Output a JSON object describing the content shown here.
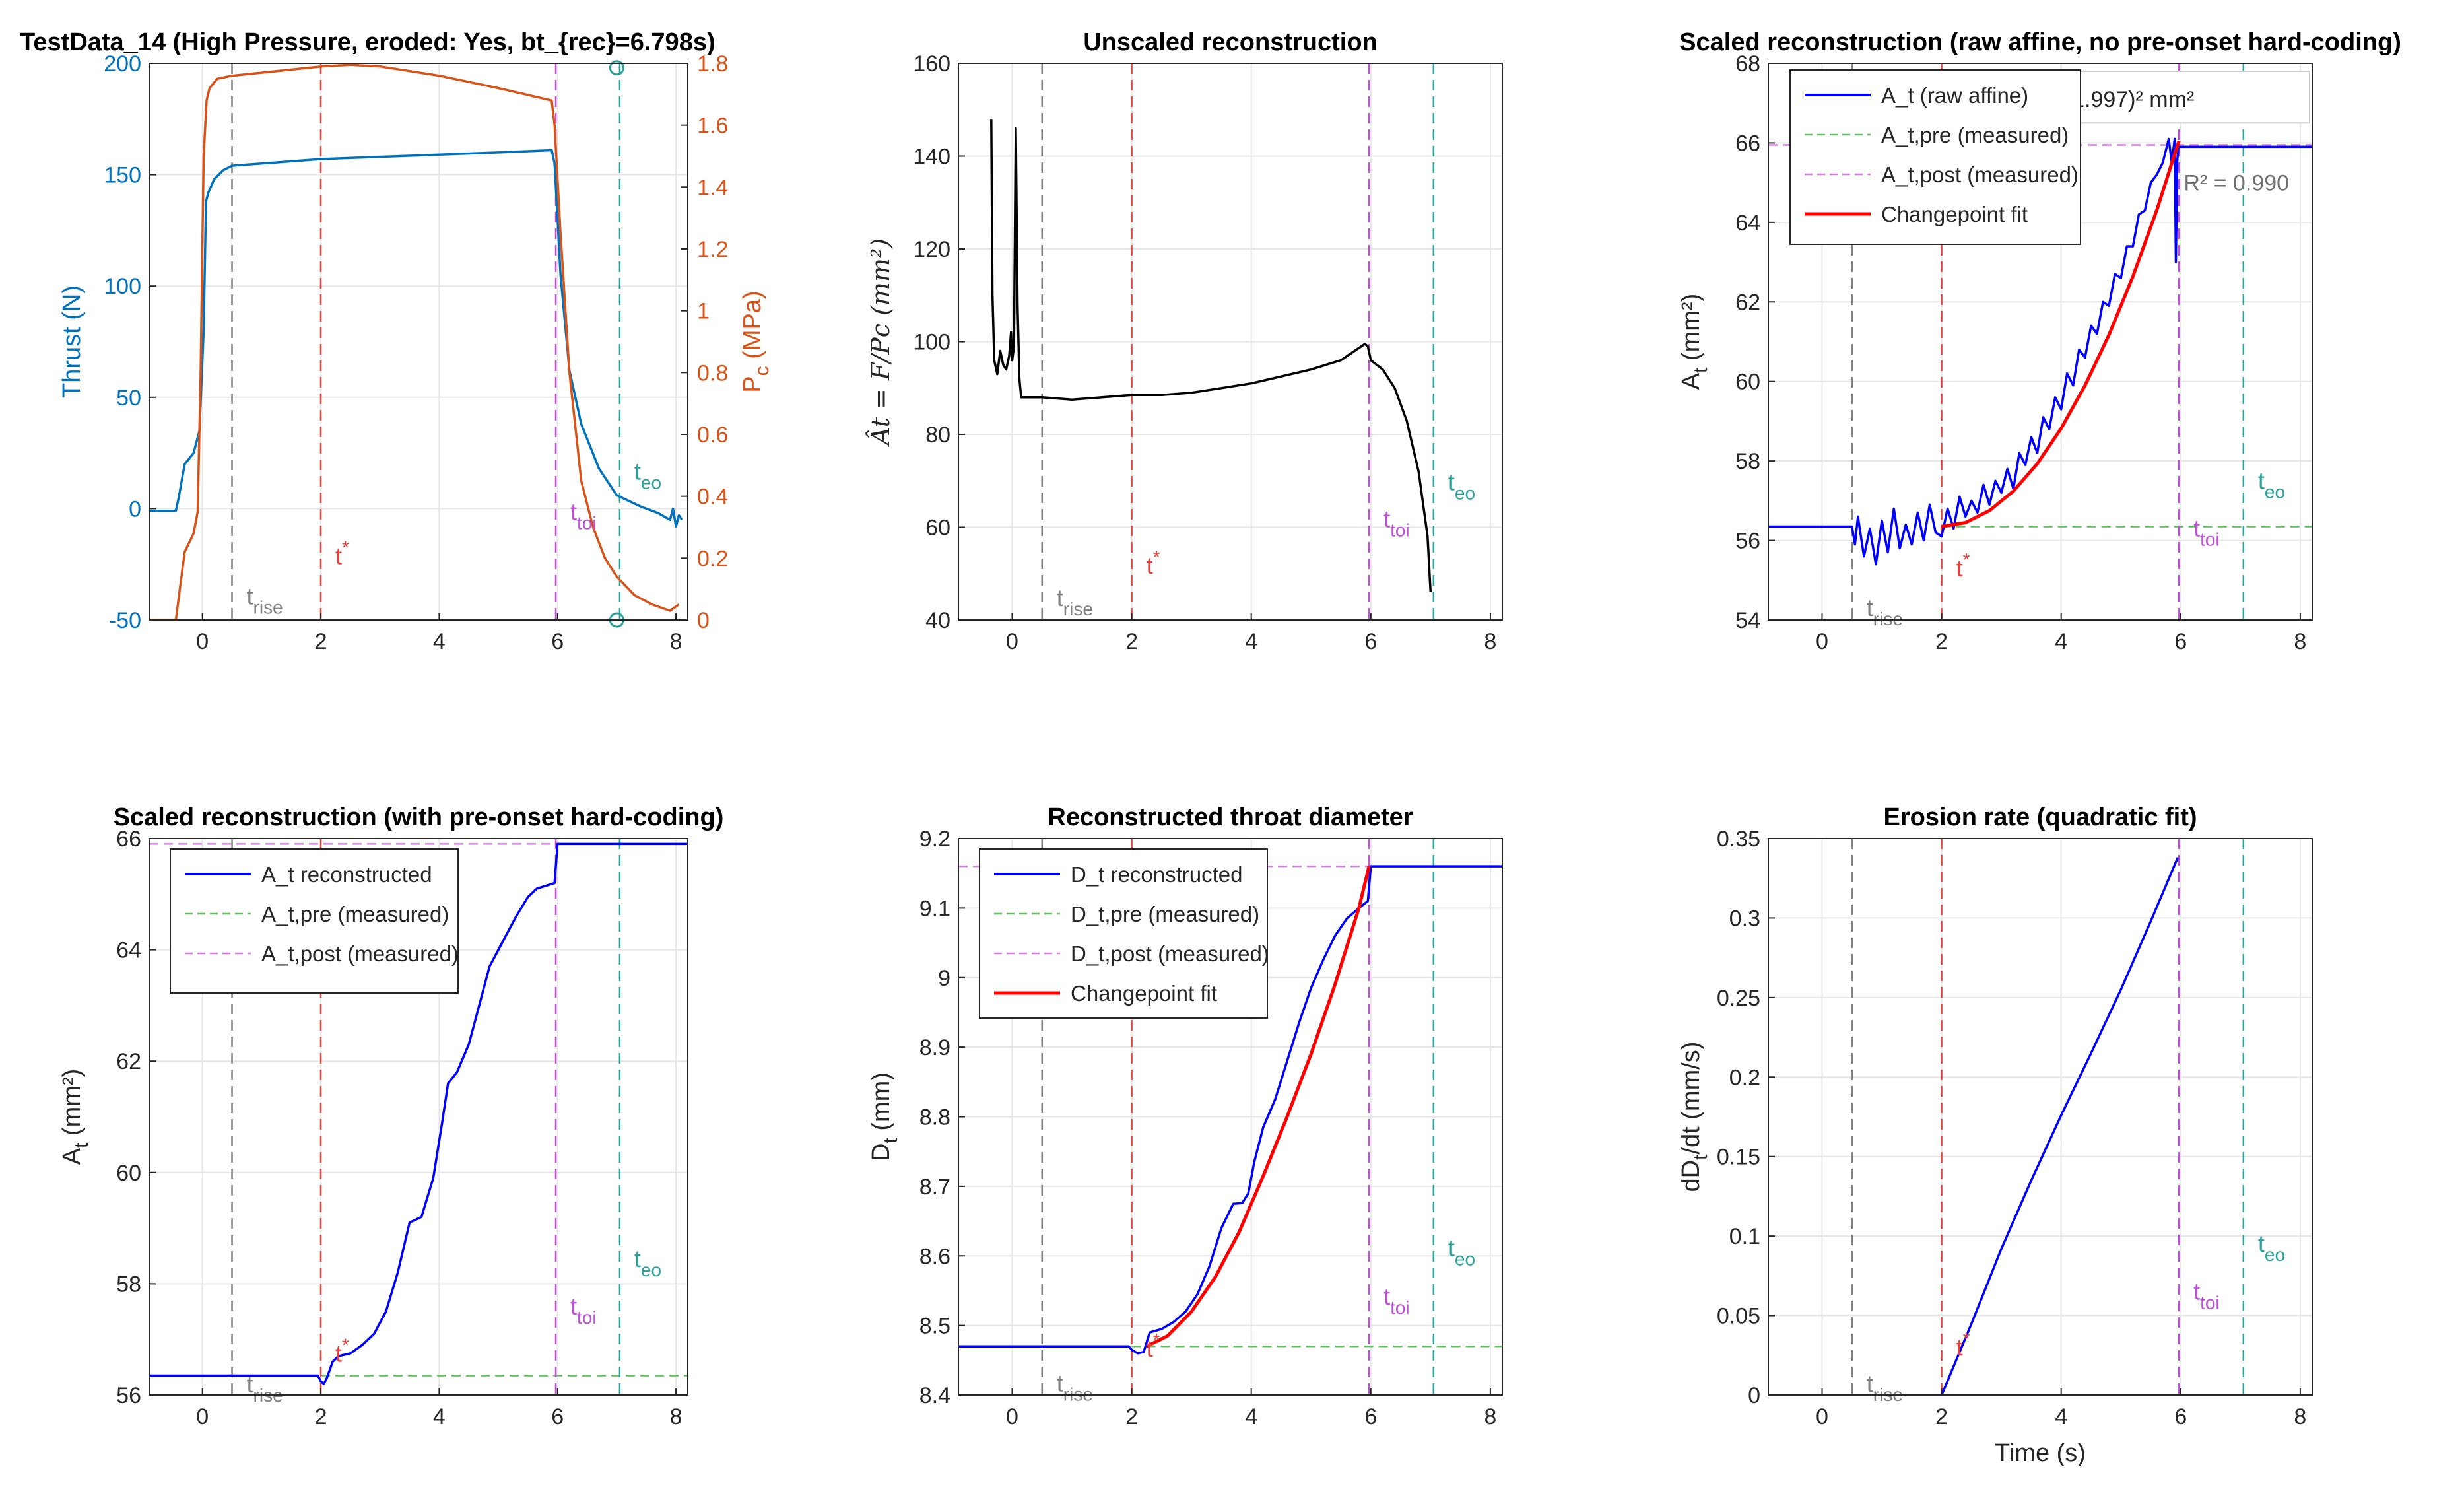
{
  "chart_data": [
    {
      "type": "line",
      "title": "TestData_14   (High Pressure, eroded: Yes, bt_{rec}=6.798s)",
      "xlabel": "",
      "ylabel": "Thrust (N)",
      "ylabel_right": "P",
      "ylabel_right_sub": "c",
      "ylabel_right_unit": " (MPa)",
      "xlim": [
        -0.9,
        8.2
      ],
      "ylim": [
        -50,
        200
      ],
      "ylim_right": [
        0,
        1.8
      ],
      "xticks": [
        0,
        2,
        4,
        6,
        8
      ],
      "yticks": [
        -50,
        0,
        50,
        100,
        150,
        200
      ],
      "yticks_right": [
        0,
        0.2,
        0.4,
        0.6,
        0.8,
        1,
        1.2,
        1.4,
        1.6,
        1.8
      ],
      "grid": true,
      "series": [
        {
          "name": "",
          "axis": "left",
          "color": "#0072BD",
          "x": [
            -0.9,
            -0.45,
            -0.4,
            -0.3,
            -0.15,
            -0.05,
            0.02,
            0.06,
            0.1,
            0.2,
            0.35,
            0.5,
            1.0,
            2.0,
            3.0,
            4.0,
            5.0,
            5.9,
            5.95,
            6.05,
            6.2,
            6.4,
            6.7,
            7.0,
            7.4,
            7.7,
            7.9,
            7.95,
            8.0,
            8.05,
            8.1
          ],
          "y": [
            -1,
            -1,
            5,
            20,
            25,
            35,
            80,
            138,
            142,
            148,
            152,
            154,
            155,
            157,
            158,
            159,
            160,
            161,
            155,
            105,
            62,
            38,
            18,
            6,
            1,
            -2,
            -5,
            0,
            -8,
            -3,
            -5
          ]
        },
        {
          "name": "",
          "axis": "right",
          "color": "#D95319",
          "x": [
            -0.9,
            -0.45,
            -0.3,
            -0.15,
            -0.08,
            -0.03,
            0.02,
            0.07,
            0.12,
            0.25,
            0.5,
            1.0,
            2.0,
            2.5,
            3.0,
            4.0,
            5.0,
            5.9,
            5.95,
            6.05,
            6.2,
            6.4,
            6.6,
            6.8,
            7.0,
            7.3,
            7.6,
            7.9,
            8.05
          ],
          "y": [
            0,
            0,
            0.22,
            0.28,
            0.35,
            0.8,
            1.5,
            1.68,
            1.72,
            1.75,
            1.76,
            1.77,
            1.79,
            1.795,
            1.79,
            1.76,
            1.72,
            1.68,
            1.6,
            1.25,
            0.8,
            0.45,
            0.3,
            0.2,
            0.14,
            0.08,
            0.05,
            0.03,
            0.05
          ]
        }
      ],
      "markers": [
        {
          "x": 7.0,
          "y": 198,
          "axis": "left",
          "color": "#2AA198"
        },
        {
          "x": 7.0,
          "y": 0,
          "axis": "right",
          "color": "#2AA198"
        }
      ],
      "vlines": [
        {
          "x": 0.5,
          "color": "#808080",
          "label": "t",
          "sub": "rise",
          "label_y": -43
        },
        {
          "x": 2.0,
          "color": "#E8413B",
          "label": "t",
          "sup": "*",
          "label_y": -25
        },
        {
          "x": 5.97,
          "color": "#BD4FD8",
          "label": "t",
          "sub": "toi",
          "label_y": -5
        },
        {
          "x": 7.05,
          "color": "#2AA198",
          "label": "t",
          "sub": "eo",
          "label_y": 13
        }
      ]
    },
    {
      "type": "line",
      "title": "Unscaled reconstruction",
      "xlabel": "",
      "ylabel": "Ât = F/Pc (mm²)",
      "xlim": [
        -0.9,
        8.2
      ],
      "ylim": [
        40,
        160
      ],
      "xticks": [
        0,
        2,
        4,
        6,
        8
      ],
      "yticks": [
        40,
        60,
        80,
        100,
        120,
        140,
        160
      ],
      "grid": true,
      "series": [
        {
          "name": "",
          "axis": "left",
          "color": "#000000",
          "x": [
            -0.35,
            -0.33,
            -0.3,
            -0.25,
            -0.2,
            -0.15,
            -0.1,
            -0.05,
            -0.02,
            0.0,
            0.03,
            0.06,
            0.09,
            0.12,
            0.15,
            0.2,
            0.3,
            0.5,
            1.0,
            1.5,
            2.0,
            2.5,
            3.0,
            3.5,
            4.0,
            4.5,
            5.0,
            5.5,
            5.9,
            5.95,
            6.0,
            6.2,
            6.4,
            6.6,
            6.8,
            6.95,
            7.0
          ],
          "y": [
            148,
            110,
            96,
            93,
            98,
            95,
            94,
            97,
            102,
            96,
            99,
            146,
            108,
            92,
            88,
            88,
            88,
            88,
            87.5,
            88,
            88.5,
            88.5,
            89,
            90,
            91,
            92.5,
            94,
            96,
            99.5,
            99,
            96,
            94,
            90,
            83,
            72,
            58,
            46
          ]
        }
      ],
      "vlines": [
        {
          "x": 0.5,
          "color": "#808080",
          "label": "t",
          "sub": "rise",
          "label_y": 43
        },
        {
          "x": 2.0,
          "color": "#E8413B",
          "label": "t",
          "sup": "*",
          "label_y": 50
        },
        {
          "x": 5.97,
          "color": "#BD4FD8",
          "label": "t",
          "sub": "toi",
          "label_y": 60
        },
        {
          "x": 7.05,
          "color": "#2AA198",
          "label": "t",
          "sub": "eo",
          "label_y": 68
        }
      ]
    },
    {
      "type": "line",
      "title": "Scaled reconstruction (raw affine, no pre-onset hard-coding)",
      "xlabel": "",
      "ylabel": "A",
      "ylabel_sub": "t",
      "ylabel_unit": " (mm²)",
      "xlim": [
        -0.9,
        8.2
      ],
      "ylim": [
        54,
        68
      ],
      "xticks": [
        0,
        2,
        4,
        6,
        8
      ],
      "yticks": [
        54,
        56,
        58,
        60,
        62,
        64,
        66,
        68
      ],
      "grid": true,
      "hlines": [
        {
          "y": 56.35,
          "color": "#5DBF5D",
          "x_from": 2.0
        },
        {
          "y": 65.95,
          "color": "#D37CE0",
          "x_from": -0.9
        }
      ],
      "series": [
        {
          "name": "A_t (raw affine)",
          "axis": "left",
          "color": "#0000FF",
          "x": [
            -0.9,
            0.5,
            0.55,
            0.6,
            0.7,
            0.8,
            0.9,
            1.0,
            1.1,
            1.2,
            1.3,
            1.4,
            1.5,
            1.6,
            1.7,
            1.8,
            1.9,
            2.0,
            2.1,
            2.2,
            2.3,
            2.4,
            2.5,
            2.6,
            2.7,
            2.8,
            2.9,
            3.0,
            3.1,
            3.2,
            3.3,
            3.4,
            3.5,
            3.6,
            3.7,
            3.8,
            3.9,
            4.0,
            4.1,
            4.2,
            4.3,
            4.4,
            4.5,
            4.6,
            4.7,
            4.8,
            4.9,
            5.0,
            5.1,
            5.2,
            5.3,
            5.4,
            5.5,
            5.6,
            5.7,
            5.8,
            5.85,
            5.9,
            5.92,
            5.94,
            5.96,
            6.0,
            8.2
          ],
          "y": [
            56.35,
            56.35,
            55.9,
            56.6,
            55.6,
            56.3,
            55.4,
            56.5,
            55.7,
            56.8,
            55.8,
            56.4,
            55.9,
            56.7,
            56.0,
            56.9,
            56.2,
            56.1,
            56.8,
            56.3,
            57.1,
            56.6,
            57.0,
            56.7,
            57.4,
            56.9,
            57.5,
            57.2,
            57.8,
            57.3,
            58.2,
            57.9,
            58.6,
            58.2,
            59.1,
            58.8,
            59.6,
            59.3,
            60.2,
            59.9,
            60.8,
            60.6,
            61.4,
            61.2,
            62.0,
            61.9,
            62.7,
            62.6,
            63.4,
            63.4,
            64.2,
            64.3,
            65.0,
            65.2,
            65.5,
            66.1,
            65.5,
            66.1,
            63.0,
            65.5,
            65.9,
            65.9,
            65.9
          ]
        },
        {
          "name": "A_t,pre (measured)",
          "axis": "left",
          "color": "#5DBF5D",
          "legend_only": true
        },
        {
          "name": "A_t,post (measured)",
          "axis": "left",
          "color": "#D37CE0",
          "legend_only": true
        },
        {
          "name": "Changepoint fit",
          "axis": "left",
          "color": "#FF0000",
          "x": [
            1.997,
            2.4,
            2.8,
            3.2,
            3.6,
            4.0,
            4.4,
            4.8,
            5.2,
            5.6,
            5.97
          ],
          "y": [
            56.35,
            56.45,
            56.75,
            57.24,
            57.93,
            58.82,
            59.9,
            61.17,
            62.64,
            64.31,
            66.05
          ]
        }
      ],
      "annotations": [
        {
          "text": "0.617 (t - 1.997)² mm²",
          "x": 4.4,
          "y": 67.1
        },
        {
          "text": "R² = 0.990",
          "x": 6.05,
          "y": 65.0
        }
      ],
      "vlines": [
        {
          "x": 0.5,
          "color": "#808080",
          "label": "t",
          "sub": "rise",
          "label_y": 54.1
        },
        {
          "x": 2.0,
          "color": "#E8413B",
          "label": "t",
          "sup": "*",
          "label_y": 55.1
        },
        {
          "x": 5.97,
          "color": "#BD4FD8",
          "label": "t",
          "sub": "toi",
          "label_y": 56.1
        },
        {
          "x": 7.05,
          "color": "#2AA198",
          "label": "t",
          "sub": "eo",
          "label_y": 57.3
        }
      ]
    },
    {
      "type": "line",
      "title": "Scaled reconstruction (with pre-onset hard-coding)",
      "xlabel": "",
      "ylabel": "A",
      "ylabel_sub": "t",
      "ylabel_unit": " (mm²)",
      "xlim": [
        -0.9,
        8.2
      ],
      "ylim": [
        56,
        66
      ],
      "xticks": [
        0,
        2,
        4,
        6,
        8
      ],
      "yticks": [
        56,
        58,
        60,
        62,
        64,
        66
      ],
      "grid": true,
      "hlines": [
        {
          "y": 56.35,
          "color": "#5DBF5D",
          "x_from": 2.0
        },
        {
          "y": 65.9,
          "color": "#D37CE0",
          "x_from": -0.9
        }
      ],
      "series": [
        {
          "name": "A_t reconstructed",
          "axis": "left",
          "color": "#0000FF",
          "x": [
            -0.9,
            1.95,
            2.0,
            2.05,
            2.1,
            2.2,
            2.3,
            2.5,
            2.7,
            2.9,
            3.1,
            3.3,
            3.5,
            3.7,
            3.9,
            4.05,
            4.15,
            4.3,
            4.5,
            4.7,
            4.85,
            4.95,
            5.1,
            5.3,
            5.5,
            5.65,
            5.8,
            5.95,
            6.0,
            8.2
          ],
          "y": [
            56.35,
            56.35,
            56.25,
            56.2,
            56.3,
            56.6,
            56.7,
            56.75,
            56.9,
            57.1,
            57.5,
            58.2,
            59.1,
            59.2,
            59.9,
            60.9,
            61.6,
            61.8,
            62.3,
            63.1,
            63.7,
            63.9,
            64.2,
            64.6,
            64.95,
            65.1,
            65.15,
            65.2,
            65.9,
            65.9
          ]
        },
        {
          "name": "A_t,pre (measured)",
          "axis": "left",
          "color": "#5DBF5D",
          "legend_only": true
        },
        {
          "name": "A_t,post (measured)",
          "axis": "left",
          "color": "#D37CE0",
          "legend_only": true
        }
      ],
      "vlines": [
        {
          "x": 0.5,
          "color": "#808080",
          "label": "t",
          "sub": "rise",
          "label_y": 56.05
        },
        {
          "x": 2.0,
          "color": "#E8413B",
          "label": "t",
          "sup": "*",
          "label_y": 56.6
        },
        {
          "x": 5.97,
          "color": "#BD4FD8",
          "label": "t",
          "sub": "toi",
          "label_y": 57.45
        },
        {
          "x": 7.05,
          "color": "#2AA198",
          "label": "t",
          "sub": "eo",
          "label_y": 58.3
        }
      ]
    },
    {
      "type": "line",
      "title": "Reconstructed throat diameter",
      "xlabel": "",
      "ylabel": "D",
      "ylabel_sub": "t",
      "ylabel_unit": " (mm)",
      "xlim": [
        -0.9,
        8.2
      ],
      "ylim": [
        8.4,
        9.2
      ],
      "xticks": [
        0,
        2,
        4,
        6,
        8
      ],
      "yticks": [
        8.4,
        8.5,
        8.6,
        8.7,
        8.8,
        8.9,
        9,
        9.1,
        9.2
      ],
      "grid": true,
      "hlines": [
        {
          "y": 8.47,
          "color": "#5DBF5D",
          "x_from": 2.0
        },
        {
          "y": 9.16,
          "color": "#D37CE0",
          "x_from": -0.9
        }
      ],
      "series": [
        {
          "name": "D_t reconstructed",
          "axis": "left",
          "color": "#0000FF",
          "x": [
            -0.9,
            1.95,
            2.0,
            2.1,
            2.2,
            2.3,
            2.5,
            2.7,
            2.9,
            3.1,
            3.3,
            3.5,
            3.7,
            3.85,
            3.95,
            4.05,
            4.2,
            4.4,
            4.6,
            4.8,
            5.0,
            5.2,
            5.4,
            5.6,
            5.8,
            5.95,
            6.0,
            8.2
          ],
          "y": [
            8.47,
            8.47,
            8.465,
            8.46,
            8.462,
            8.49,
            8.495,
            8.505,
            8.52,
            8.545,
            8.585,
            8.64,
            8.675,
            8.676,
            8.69,
            8.735,
            8.785,
            8.825,
            8.88,
            8.935,
            8.985,
            9.025,
            9.06,
            9.085,
            9.1,
            9.11,
            9.16,
            9.16
          ]
        },
        {
          "name": "D_t,pre (measured)",
          "axis": "left",
          "color": "#5DBF5D",
          "legend_only": true
        },
        {
          "name": "D_t,post (measured)",
          "axis": "left",
          "color": "#D37CE0",
          "legend_only": true
        },
        {
          "name": "Changepoint fit",
          "axis": "left",
          "color": "#FF0000",
          "x": [
            2.25,
            2.6,
            3.0,
            3.4,
            3.8,
            4.2,
            4.6,
            5.0,
            5.4,
            5.8,
            5.97
          ],
          "y": [
            8.47,
            8.485,
            8.52,
            8.57,
            8.635,
            8.715,
            8.8,
            8.89,
            8.99,
            9.1,
            9.16
          ]
        }
      ],
      "vlines": [
        {
          "x": 0.5,
          "color": "#808080",
          "label": "t",
          "sub": "rise",
          "label_y": 8.405
        },
        {
          "x": 2.0,
          "color": "#E8413B",
          "label": "t",
          "sup": "*",
          "label_y": 8.455
        },
        {
          "x": 5.97,
          "color": "#BD4FD8",
          "label": "t",
          "sub": "toi",
          "label_y": 8.53
        },
        {
          "x": 7.05,
          "color": "#2AA198",
          "label": "t",
          "sub": "eo",
          "label_y": 8.6
        }
      ]
    },
    {
      "type": "line",
      "title": "Erosion rate (quadratic fit)",
      "xlabel": "Time (s)",
      "ylabel": "dD",
      "ylabel_sub": "t",
      "ylabel_unit": "/dt (mm/s)",
      "xlim": [
        -0.9,
        8.2
      ],
      "ylim": [
        0,
        0.35
      ],
      "xticks": [
        0,
        2,
        4,
        6,
        8
      ],
      "yticks": [
        0,
        0.05,
        0.1,
        0.15,
        0.2,
        0.25,
        0.3,
        0.35
      ],
      "grid": true,
      "series": [
        {
          "name": "",
          "axis": "left",
          "color": "#0000FF",
          "x": [
            2.0,
            2.5,
            3.0,
            3.5,
            4.0,
            4.5,
            5.0,
            5.5,
            5.95
          ],
          "y": [
            0.0,
            0.045,
            0.092,
            0.135,
            0.176,
            0.215,
            0.255,
            0.298,
            0.338
          ]
        }
      ],
      "vlines": [
        {
          "x": 0.5,
          "color": "#808080",
          "label": "t",
          "sub": "rise",
          "label_y": 0.002
        },
        {
          "x": 2.0,
          "color": "#E8413B",
          "label": "t",
          "sup": "*",
          "label_y": 0.025
        },
        {
          "x": 5.97,
          "color": "#BD4FD8",
          "label": "t",
          "sub": "toi",
          "label_y": 0.06
        },
        {
          "x": 7.05,
          "color": "#2AA198",
          "label": "t",
          "sub": "eo",
          "label_y": 0.09
        }
      ]
    }
  ]
}
